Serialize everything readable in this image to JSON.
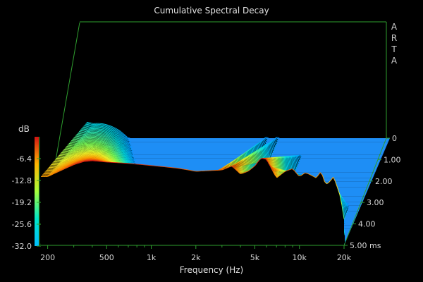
{
  "chart_data": {
    "type": "area",
    "title": "Cumulative Spectral Decay",
    "xlabel": "Frequency (Hz)",
    "ylabel": "dB",
    "zlabel": "",
    "brand": [
      "A",
      "R",
      "T",
      "A"
    ],
    "x_scale": "log",
    "xlim": [
      180,
      20000
    ],
    "ylim": [
      -32.0,
      0
    ],
    "zlim": [
      0,
      5.0
    ],
    "x_ticks": [
      {
        "value": 200,
        "label": "200"
      },
      {
        "value": 500,
        "label": "500"
      },
      {
        "value": 1000,
        "label": "1k"
      },
      {
        "value": 2000,
        "label": "2k"
      },
      {
        "value": 5000,
        "label": "5k"
      },
      {
        "value": 10000,
        "label": "10k"
      },
      {
        "value": 20000,
        "label": "20k"
      }
    ],
    "y_ticks": [
      {
        "value": -6.4,
        "label": "-6.4"
      },
      {
        "value": -12.8,
        "label": "-12.8"
      },
      {
        "value": -19.2,
        "label": "-19.2"
      },
      {
        "value": -25.6,
        "label": "-25.6"
      },
      {
        "value": -32.0,
        "label": "-32.0"
      }
    ],
    "z_ticks": [
      {
        "value": 0,
        "label": "0"
      },
      {
        "value": 1.0,
        "label": "1.00"
      },
      {
        "value": 2.0,
        "label": "2.00"
      },
      {
        "value": 3.0,
        "label": "3.00"
      },
      {
        "value": 4.0,
        "label": "4.00"
      },
      {
        "value": 5.0,
        "label": "5.00 ms"
      }
    ],
    "initial_response": {
      "x": [
        200,
        250,
        300,
        350,
        400,
        500,
        700,
        1000,
        1500,
        2000,
        3000,
        3500,
        4000,
        4500,
        5000,
        5500,
        6000,
        7000,
        8000,
        9000,
        10000,
        11000,
        12000,
        13000,
        14000,
        15000,
        16000,
        17000,
        18000,
        19000,
        20000
      ],
      "y": [
        -6.0,
        -3.5,
        -1.5,
        -0.3,
        0.0,
        -0.5,
        -1.0,
        -1.8,
        -2.8,
        -4.0,
        -3.5,
        -2.0,
        -5.0,
        -4.0,
        -2.0,
        1.0,
        0.5,
        -6.5,
        -4.0,
        -3.0,
        -6.0,
        -4.5,
        -5.5,
        -6.5,
        -4.0,
        -9.0,
        -8.0,
        -6.0,
        -10.0,
        -14.0,
        -22.0
      ]
    },
    "late_resonances_hz": [
      2900,
      3500,
      4200,
      5500,
      6500,
      10000,
      13000,
      16000
    ],
    "slices": 60,
    "floor_db": -32.0,
    "colormap": "jet",
    "grid": false,
    "legend": "colorbar-left"
  }
}
